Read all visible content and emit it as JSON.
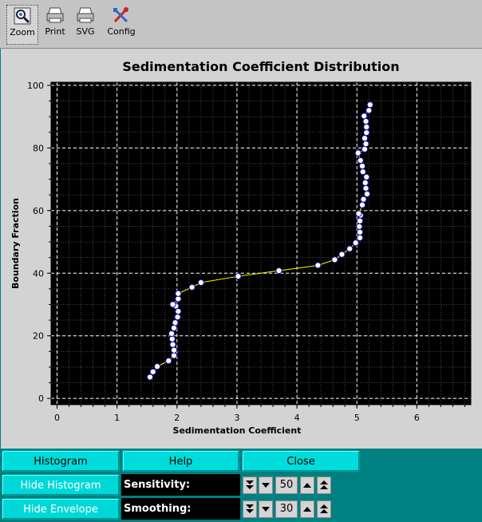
{
  "toolbar": {
    "items": [
      {
        "label": "Zoom",
        "icon": "zoom-icon"
      },
      {
        "label": "Print",
        "icon": "printer-icon"
      },
      {
        "label": "SVG",
        "icon": "svg-printer-icon"
      },
      {
        "label": "Config",
        "icon": "config-tools-icon"
      }
    ]
  },
  "chart_data": {
    "type": "scatter",
    "title": "Sedimentation Coefficient Distribution",
    "xlabel": "Sedimentation Coefficient",
    "ylabel": "Boundary Fraction",
    "xlim": [
      -0.1,
      6.9
    ],
    "ylim": [
      -2,
      101
    ],
    "xticks": [
      "0",
      "1",
      "2",
      "3",
      "4",
      "5",
      "6"
    ],
    "yticks": [
      "0",
      "20",
      "40",
      "60",
      "80",
      "100"
    ],
    "grid": true,
    "background": "#000000",
    "grid_color": "#ffffff",
    "line_color": "#ffff00",
    "marker_color": "#ffffff",
    "series": [
      {
        "points": [
          [
            1.55,
            6.8
          ],
          [
            1.6,
            8.5
          ],
          [
            1.67,
            10.2
          ],
          [
            1.86,
            12.0
          ],
          [
            1.95,
            13.7
          ],
          [
            1.95,
            15.4
          ],
          [
            1.93,
            17.2
          ],
          [
            1.92,
            19.0
          ],
          [
            1.91,
            20.7
          ],
          [
            1.95,
            22.5
          ],
          [
            1.97,
            24.2
          ],
          [
            2.01,
            26.0
          ],
          [
            2.02,
            27.8
          ],
          [
            1.98,
            29.5
          ],
          [
            1.93,
            30.0
          ],
          [
            2.02,
            31.8
          ],
          [
            2.02,
            33.5
          ],
          [
            2.25,
            35.5
          ],
          [
            2.4,
            37.0
          ],
          [
            3.02,
            39.0
          ],
          [
            3.7,
            40.8
          ],
          [
            4.35,
            42.5
          ],
          [
            4.63,
            44.3
          ],
          [
            4.75,
            46.0
          ],
          [
            4.88,
            47.8
          ],
          [
            4.98,
            49.7
          ],
          [
            5.05,
            51.3
          ],
          [
            5.05,
            53.1
          ],
          [
            5.04,
            54.9
          ],
          [
            5.05,
            56.7
          ],
          [
            5.06,
            58.5
          ],
          [
            5.03,
            59.0
          ],
          [
            5.09,
            61.8
          ],
          [
            5.11,
            63.6
          ],
          [
            5.17,
            65.3
          ],
          [
            5.15,
            67.1
          ],
          [
            5.14,
            68.9
          ],
          [
            5.16,
            70.7
          ],
          [
            5.1,
            72.4
          ],
          [
            5.09,
            74.2
          ],
          [
            5.06,
            76.0
          ],
          [
            5.02,
            78.4
          ],
          [
            5.13,
            79.6
          ],
          [
            5.15,
            81.3
          ],
          [
            5.13,
            83.1
          ],
          [
            5.16,
            84.9
          ],
          [
            5.16,
            86.7
          ],
          [
            5.15,
            88.5
          ],
          [
            5.12,
            90.2
          ],
          [
            5.2,
            92.0
          ],
          [
            5.22,
            93.8
          ]
        ]
      }
    ]
  },
  "controls": {
    "histogram_label": "Histogram",
    "help_label": "Help",
    "close_label": "Close",
    "hide_histogram_label": "Hide Histogram",
    "hide_envelope_label": "Hide Envelope",
    "sensitivity_label": "Sensitivity:",
    "sensitivity_value": "50",
    "smoothing_label": "Smoothing:",
    "smoothing_value": "30"
  }
}
